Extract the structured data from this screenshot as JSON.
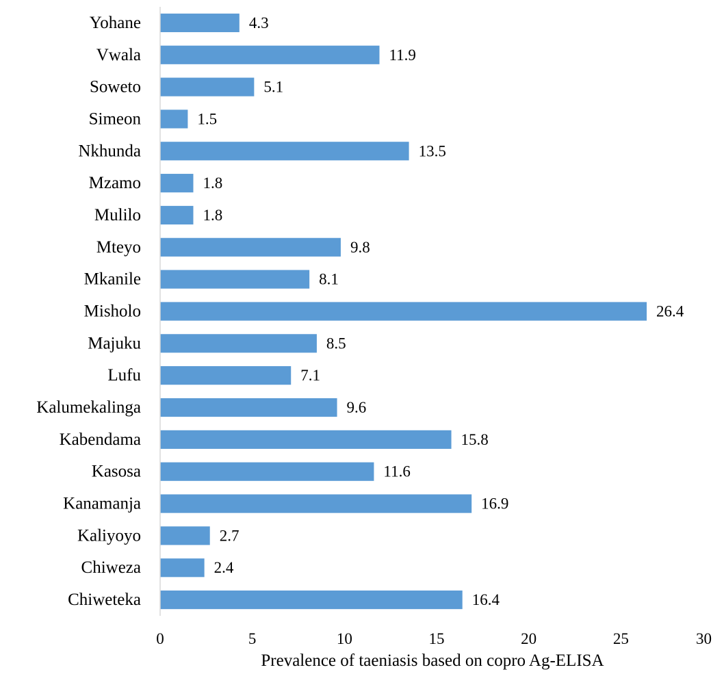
{
  "chart_data": {
    "type": "bar",
    "orientation": "horizontal",
    "categories": [
      "Yohane",
      "Vwala",
      "Soweto",
      "Simeon",
      "Nkhunda",
      "Mzamo",
      "Mulilo",
      "Mteyo",
      "Mkanile",
      "Misholo",
      "Majuku",
      "Lufu",
      "Kalumekalinga",
      "Kabendama",
      "Kasosa",
      "Kanamanja",
      "Kaliyoyo",
      "Chiweza",
      "Chiweteka"
    ],
    "values": [
      4.3,
      11.9,
      5.1,
      1.5,
      13.5,
      1.8,
      1.8,
      9.8,
      8.1,
      26.4,
      8.5,
      7.1,
      9.6,
      15.8,
      11.6,
      16.9,
      2.7,
      2.4,
      16.4
    ],
    "value_labels": [
      "4.3",
      "11.9",
      "5.1",
      "1.5",
      "13.5",
      "1.8",
      "1.8",
      "9.8",
      "8.1",
      "26.4",
      "8.5",
      "7.1",
      "9.6",
      "15.8",
      "11.6",
      "16.9",
      "2.7",
      "2.4",
      "16.4"
    ],
    "title": "",
    "xlabel": "Prevalence of taeniasis based on copro Ag-ELISA",
    "ylabel": "",
    "xlim": [
      0,
      30
    ],
    "xticks": [
      "0",
      "5",
      "10",
      "15",
      "20",
      "25",
      "30"
    ],
    "grid": false,
    "legend": "none",
    "bar_color": "#5b9bd5",
    "axis_color": "#d9d9d9"
  }
}
